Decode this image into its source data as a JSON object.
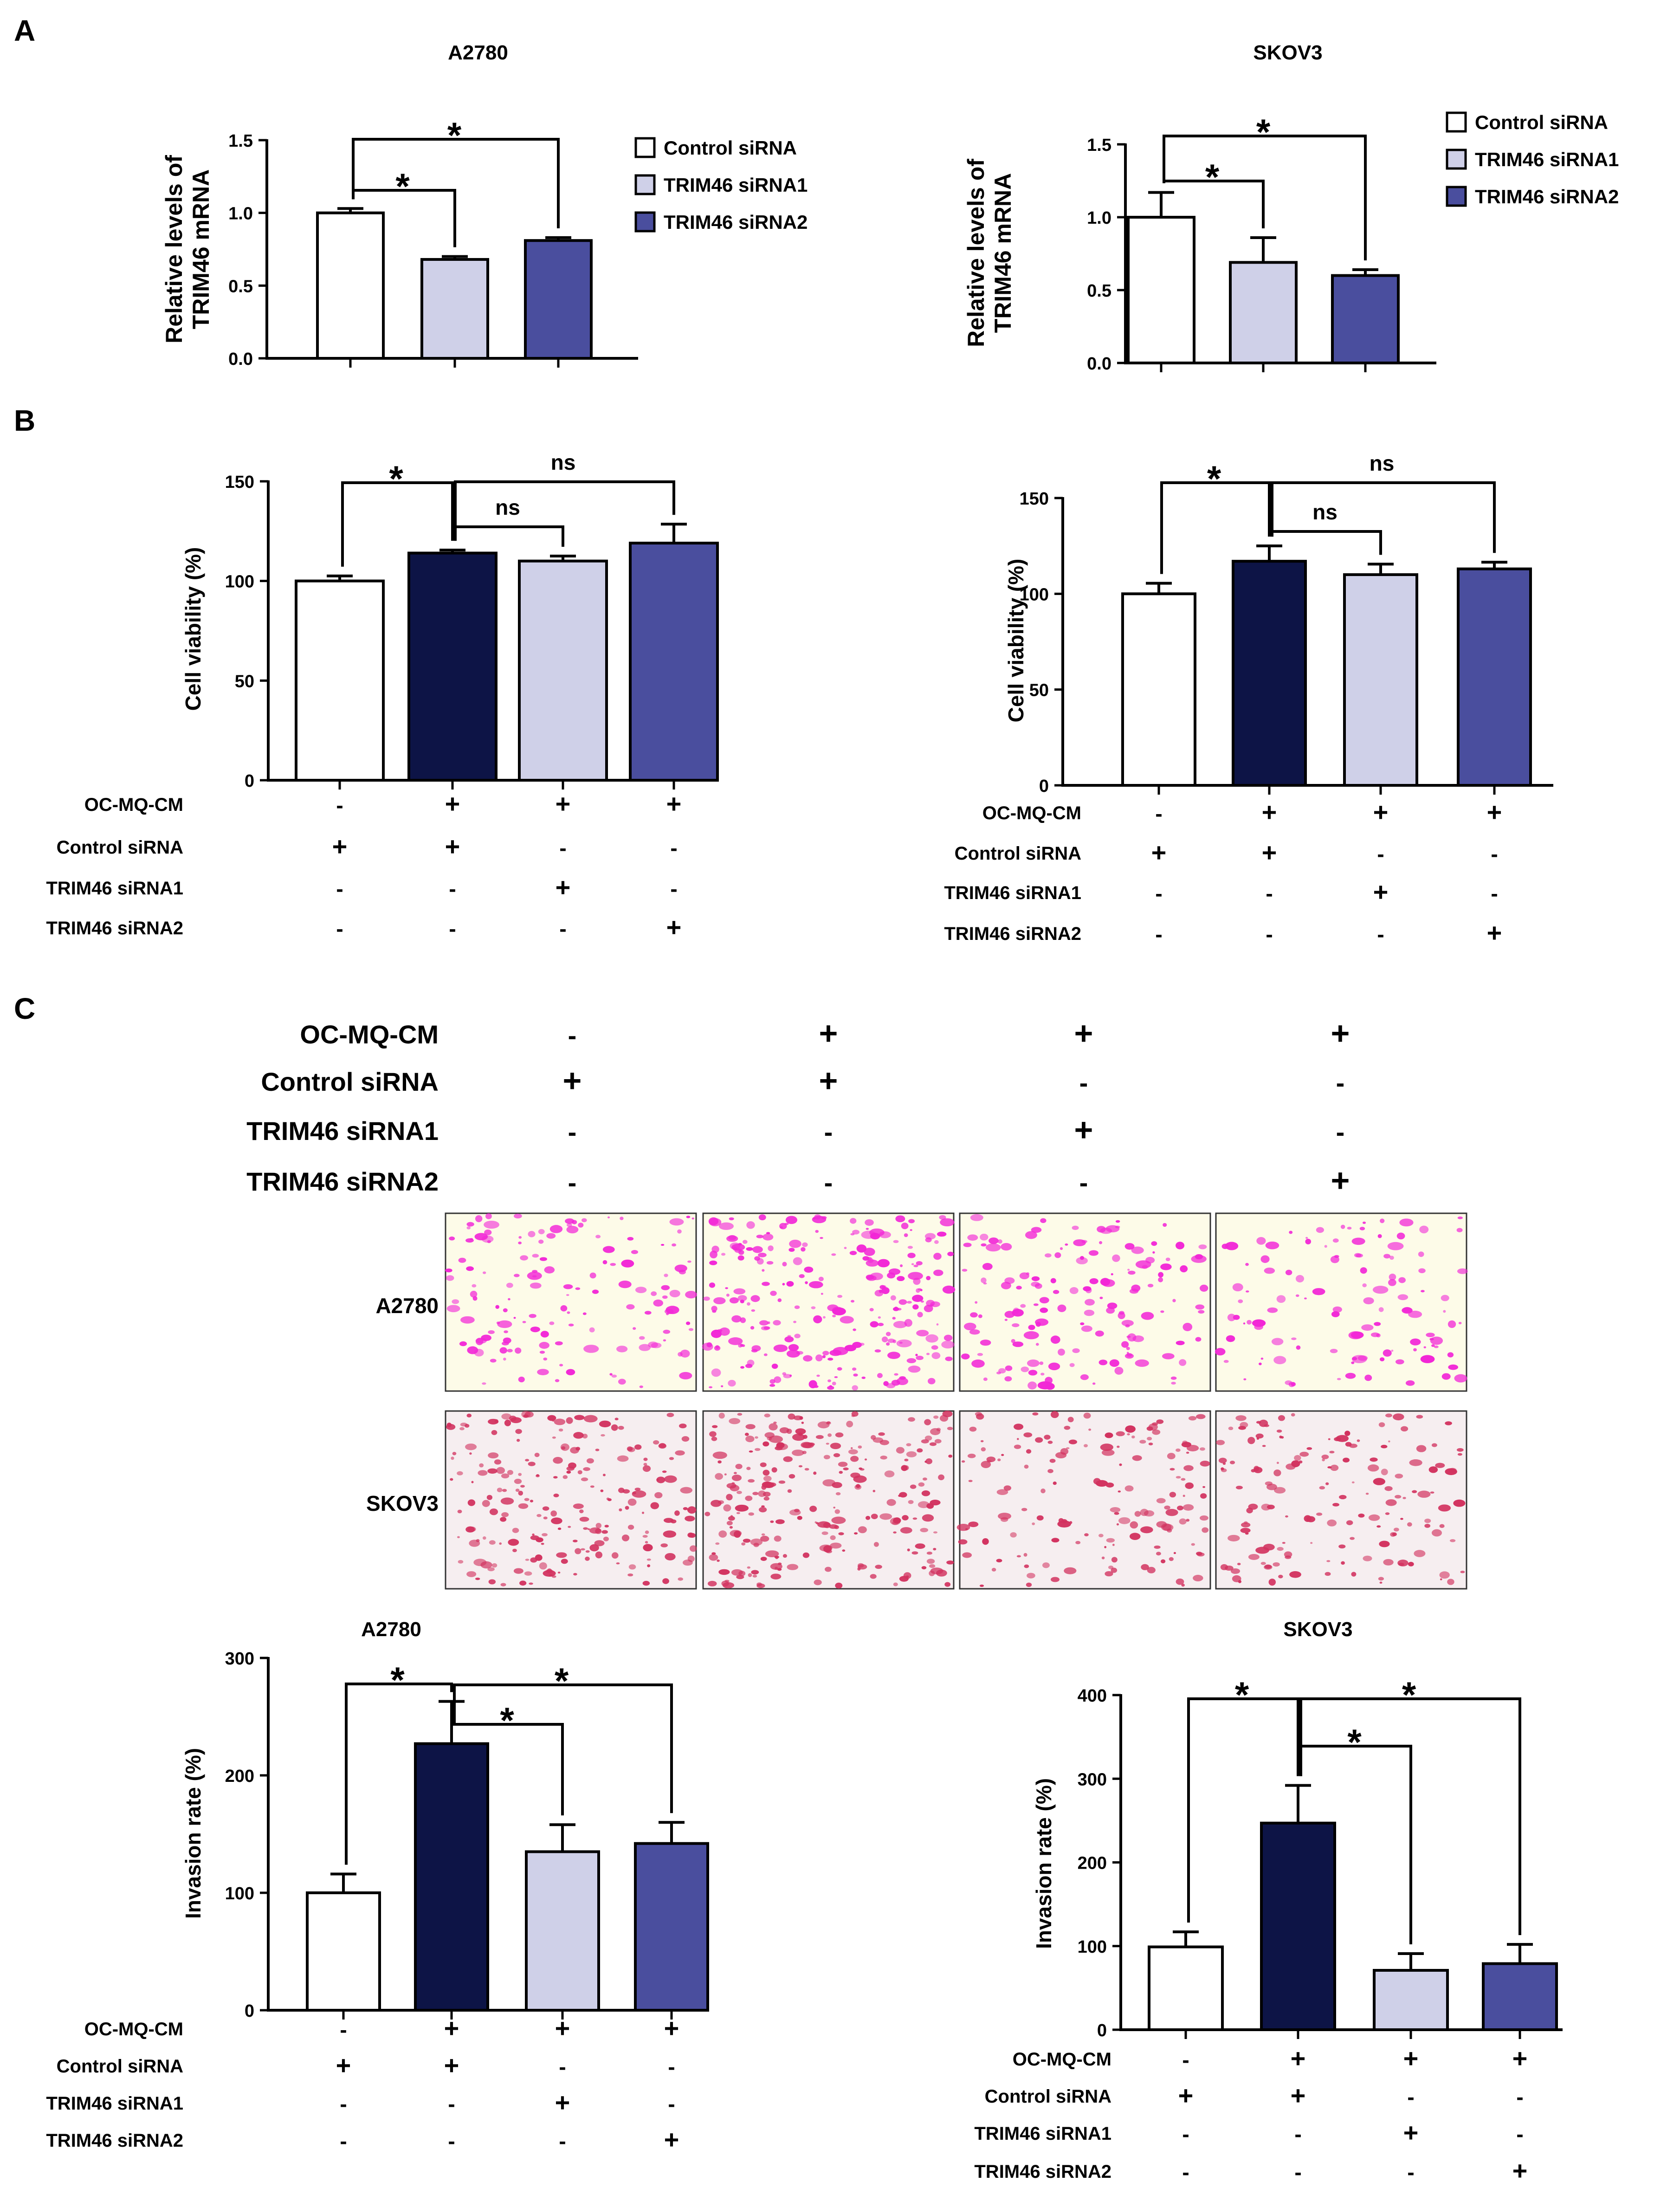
{
  "panels": {
    "a": "A",
    "b": "B",
    "c": "C"
  },
  "colors": {
    "control": "#ffffff",
    "siRNA1": "#cfd0e8",
    "siRNA2": "#4a4e9e",
    "cm": "#0d1446",
    "axis": "#000000",
    "micro_bg_a": "#fdfbe8",
    "micro_cell_a": "#f227d6",
    "micro_bg_s": "#f6eef0",
    "micro_cell_s": "#d2325f"
  },
  "legend": [
    "Control siRNA",
    "TRIM46 siRNA1",
    "TRIM46 siRNA2"
  ],
  "treatment_rows": [
    "OC-MQ-CM",
    "Control siRNA",
    "TRIM46 siRNA1",
    "TRIM46 siRNA2"
  ],
  "treatment_signs": [
    [
      "-",
      "+",
      "+",
      "+"
    ],
    [
      "+",
      "+",
      "-",
      "-"
    ],
    [
      "-",
      "-",
      "+",
      "-"
    ],
    [
      "-",
      "-",
      "-",
      "+"
    ]
  ],
  "grid_rows": [
    "OC-MQ-CM",
    "Control siRNA",
    "TRIM46 siRNA1",
    "TRIM46 siRNA2"
  ],
  "micro_rows": [
    "A2780",
    "SKOV3"
  ],
  "chart_data": [
    {
      "id": "A-left",
      "type": "bar",
      "title": "A2780",
      "ylabel": "Relative levels of TRIM46 mRNA",
      "ylim": [
        0,
        1.5
      ],
      "yticks": [
        "0.0",
        "0.5",
        "1.0",
        "1.5"
      ],
      "categories": [
        "Control siRNA",
        "TRIM46 siRNA1",
        "TRIM46 siRNA2"
      ],
      "values": [
        1.0,
        0.68,
        0.81
      ],
      "errors": [
        0.03,
        0.02,
        0.02
      ],
      "fill_keys": [
        "control",
        "siRNA1",
        "siRNA2"
      ],
      "significance": [
        {
          "from": 1,
          "to": 2,
          "label": "*"
        },
        {
          "from": 1,
          "to": 3,
          "label": "*"
        }
      ]
    },
    {
      "id": "A-right",
      "type": "bar",
      "title": "SKOV3",
      "ylabel": "Relative levels of TRIM46 mRNA",
      "ylim": [
        0,
        1.5
      ],
      "yticks": [
        "0.0",
        "0.5",
        "1.0",
        "1.5"
      ],
      "categories": [
        "Control siRNA",
        "TRIM46 siRNA1",
        "TRIM46 siRNA2"
      ],
      "values": [
        1.0,
        0.69,
        0.6
      ],
      "errors": [
        0.17,
        0.17,
        0.04
      ],
      "fill_keys": [
        "control",
        "siRNA1",
        "siRNA2"
      ],
      "significance": [
        {
          "from": 1,
          "to": 2,
          "label": "*"
        },
        {
          "from": 1,
          "to": 3,
          "label": "*"
        }
      ]
    },
    {
      "id": "B-left",
      "type": "bar",
      "title": "",
      "ylabel": "Cell viability (%)",
      "ylim": [
        0,
        150
      ],
      "yticks": [
        "0",
        "50",
        "100",
        "150"
      ],
      "categories": [
        "Control",
        "OC-MQ-CM + Control siRNA",
        "OC-MQ-CM + TRIM46 siRNA1",
        "OC-MQ-CM + TRIM46 siRNA2"
      ],
      "values": [
        100,
        114,
        110,
        119
      ],
      "errors": [
        2.5,
        1.5,
        2.5,
        9.5
      ],
      "fill_keys": [
        "control",
        "cm",
        "siRNA1",
        "siRNA2"
      ],
      "significance": [
        {
          "from": 1,
          "to": 2,
          "label": "*"
        },
        {
          "from": 2,
          "to": 3,
          "label": "ns"
        },
        {
          "from": 2,
          "to": 4,
          "label": "ns"
        }
      ]
    },
    {
      "id": "B-right",
      "type": "bar",
      "title": "",
      "ylabel": "Cell viability (%)",
      "ylim": [
        0,
        150
      ],
      "yticks": [
        "0",
        "50",
        "100",
        "150"
      ],
      "categories": [
        "Control",
        "OC-MQ-CM + Control siRNA",
        "OC-MQ-CM + TRIM46 siRNA1",
        "OC-MQ-CM + TRIM46 siRNA2"
      ],
      "values": [
        100,
        117,
        110,
        113
      ],
      "errors": [
        5.5,
        8,
        5.5,
        3.5
      ],
      "fill_keys": [
        "control",
        "cm",
        "siRNA1",
        "siRNA2"
      ],
      "significance": [
        {
          "from": 1,
          "to": 2,
          "label": "*"
        },
        {
          "from": 2,
          "to": 3,
          "label": "ns"
        },
        {
          "from": 2,
          "to": 4,
          "label": "ns"
        }
      ]
    },
    {
      "id": "C-left",
      "type": "bar",
      "title": "A2780",
      "ylabel": "Invasion rate (%)",
      "ylim": [
        0,
        300
      ],
      "yticks": [
        "0",
        "100",
        "200",
        "300"
      ],
      "categories": [
        "Control",
        "OC-MQ-CM + Control siRNA",
        "OC-MQ-CM + TRIM46 siRNA1",
        "OC-MQ-CM + TRIM46 siRNA2"
      ],
      "values": [
        100,
        227,
        135,
        142
      ],
      "errors": [
        16,
        36,
        23,
        18
      ],
      "fill_keys": [
        "control",
        "cm",
        "siRNA1",
        "siRNA2"
      ],
      "significance": [
        {
          "from": 1,
          "to": 2,
          "label": "*"
        },
        {
          "from": 2,
          "to": 3,
          "label": "*"
        },
        {
          "from": 2,
          "to": 4,
          "label": "*"
        }
      ]
    },
    {
      "id": "C-right",
      "type": "bar",
      "title": "SKOV3",
      "ylabel": "Invasion rate (%)",
      "ylim": [
        0,
        400
      ],
      "yticks": [
        "0",
        "100",
        "200",
        "300",
        "400"
      ],
      "categories": [
        "Control",
        "OC-MQ-CM + Control siRNA",
        "OC-MQ-CM + TRIM46 siRNA1",
        "OC-MQ-CM + TRIM46 siRNA2"
      ],
      "values": [
        99,
        247,
        71,
        79
      ],
      "errors": [
        18,
        45,
        20,
        23
      ],
      "fill_keys": [
        "control",
        "cm",
        "siRNA1",
        "siRNA2"
      ],
      "significance": [
        {
          "from": 1,
          "to": 2,
          "label": "*"
        },
        {
          "from": 2,
          "to": 3,
          "label": "*"
        },
        {
          "from": 2,
          "to": 4,
          "label": "*"
        }
      ]
    }
  ]
}
